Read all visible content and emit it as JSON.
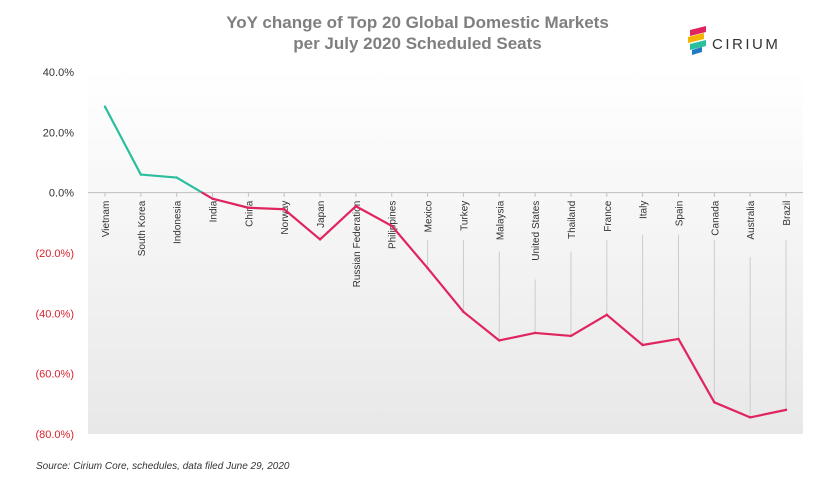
{
  "header": {
    "title_line1": "YoY change of Top 20 Global Domestic Markets",
    "title_line2": "per July 2020 Scheduled Seats",
    "logo_text": "CIRIUM",
    "logo_icon": "cirium-logo-icon"
  },
  "footer": {
    "source": "Source: Cirium Core, schedules, data filed June 29, 2020"
  },
  "colors": {
    "positive_line": "#2bbf9e",
    "negative_line": "#e0245e",
    "negative_tick_text": "#d9232e",
    "positive_tick_text": "#333333",
    "logo_palette": [
      "#e0245e",
      "#f4b400",
      "#2bbf9e",
      "#1e7ac2"
    ]
  },
  "chart_data": {
    "type": "line",
    "title": "YoY change of Top 20 Global Domestic Markets per July 2020 Scheduled Seats",
    "categories": [
      "Vietnam",
      "South Korea",
      "Indonesia",
      "India",
      "China",
      "Norway",
      "Japan",
      "Russian Federation",
      "Philippines",
      "Mexico",
      "Turkey",
      "Malaysia",
      "United States",
      "Thailand",
      "France",
      "Italy",
      "Spain",
      "Canada",
      "Australia",
      "Brazil"
    ],
    "series": [
      {
        "values": [
          28.5,
          6.0,
          5.0,
          -2.0,
          -5.0,
          -5.5,
          -15.5,
          -4.5,
          -11.0,
          -25.0,
          -39.5,
          -49.0,
          -46.5,
          -47.5,
          -40.5,
          -50.5,
          -48.5,
          -69.5,
          -74.5,
          -72.0
        ]
      }
    ],
    "y_ticks": [
      "40.0%",
      "20.0%",
      "0.0%",
      "(20.0%)",
      "(40.0%)",
      "(60.0%)",
      "(80.0%)"
    ],
    "y_tick_values": [
      40,
      20,
      0,
      -20,
      -40,
      -60,
      -80
    ],
    "ylim": [
      -80,
      40
    ],
    "xlabel": "",
    "ylabel": "",
    "grid": false,
    "legend": "none"
  }
}
